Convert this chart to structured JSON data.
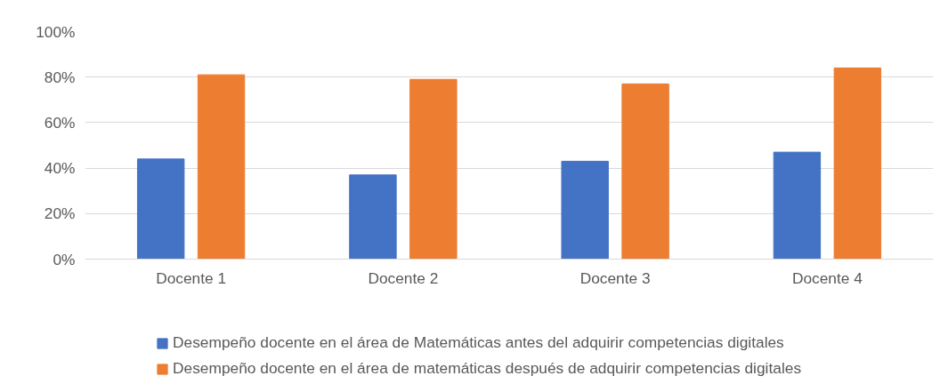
{
  "chart_data": {
    "type": "bar",
    "categories": [
      "Docente 1",
      "Docente 2",
      "Docente 3",
      "Docente 4"
    ],
    "series": [
      {
        "name": "Desempeño docente en el área de Matemáticas antes del adquirir competencias digitales",
        "color": "#4472c4",
        "values": [
          0.44,
          0.37,
          0.43,
          0.47
        ]
      },
      {
        "name": "Desempeño docente en el área de matemáticas después de adquirir competencias digitales",
        "color": "#ed7d31",
        "values": [
          0.81,
          0.79,
          0.77,
          0.84
        ]
      }
    ],
    "ylim": [
      0,
      1
    ],
    "yticks": [
      {
        "value": 0,
        "label": "0%"
      },
      {
        "value": 0.2,
        "label": "20%"
      },
      {
        "value": 0.4,
        "label": "40%"
      },
      {
        "value": 0.6,
        "label": "60%"
      },
      {
        "value": 0.8,
        "label": "80%"
      },
      {
        "value": 1,
        "label": "100%"
      }
    ],
    "grid": "y",
    "legend": "bottom"
  }
}
